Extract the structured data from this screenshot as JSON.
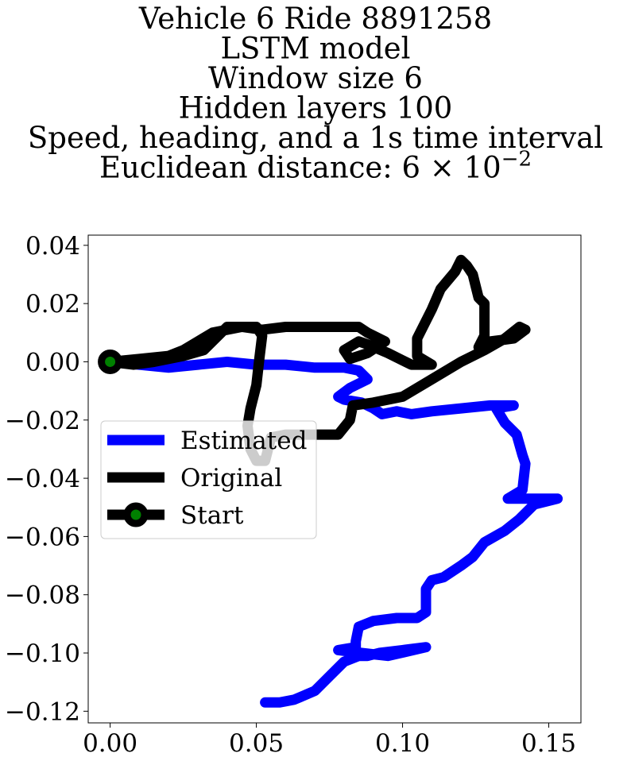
{
  "chart_data": {
    "type": "line",
    "title_lines": [
      "Vehicle 6 Ride 8891258",
      "LSTM model",
      "Window size 6",
      "Hidden layers 100",
      "Speed, heading, and a 1s time interval",
      "Euclidean distance: 6 × 10"
    ],
    "title_exponent": "−2",
    "xlim": [
      -0.0075,
      0.161
    ],
    "ylim": [
      -0.124,
      0.0435
    ],
    "xticks": [
      0.0,
      0.05,
      0.1,
      0.15
    ],
    "xtick_labels": [
      "0.00",
      "0.05",
      "0.10",
      "0.15"
    ],
    "yticks": [
      0.04,
      0.02,
      0.0,
      -0.02,
      -0.04,
      -0.06,
      -0.08,
      -0.1,
      -0.12
    ],
    "ytick_labels": [
      "0.04",
      "0.02",
      "0.00",
      "−0.02",
      "−0.04",
      "−0.06",
      "−0.08",
      "−0.10",
      "−0.12"
    ],
    "grid": false,
    "legend_position": "center-left",
    "series": [
      {
        "name": "Estimated",
        "color": "#0000ff",
        "points": [
          [
            0.0,
            0.0
          ],
          [
            0.01,
            -0.001
          ],
          [
            0.02,
            -0.002
          ],
          [
            0.03,
            -0.001
          ],
          [
            0.04,
            0.0
          ],
          [
            0.05,
            -0.001
          ],
          [
            0.06,
            -0.001
          ],
          [
            0.07,
            -0.002
          ],
          [
            0.08,
            -0.002
          ],
          [
            0.085,
            -0.003
          ],
          [
            0.088,
            -0.006
          ],
          [
            0.082,
            -0.009
          ],
          [
            0.078,
            -0.012
          ],
          [
            0.08,
            -0.013
          ],
          [
            0.086,
            -0.014
          ],
          [
            0.09,
            -0.016
          ],
          [
            0.093,
            -0.018
          ],
          [
            0.098,
            -0.017
          ],
          [
            0.103,
            -0.018
          ],
          [
            0.11,
            -0.017
          ],
          [
            0.12,
            -0.016
          ],
          [
            0.13,
            -0.015
          ],
          [
            0.138,
            -0.015
          ],
          [
            0.132,
            -0.016
          ],
          [
            0.135,
            -0.021
          ],
          [
            0.139,
            -0.025
          ],
          [
            0.141,
            -0.032
          ],
          [
            0.142,
            -0.035
          ],
          [
            0.141,
            -0.044
          ],
          [
            0.136,
            -0.047
          ],
          [
            0.145,
            -0.047
          ],
          [
            0.153,
            -0.047
          ],
          [
            0.145,
            -0.049
          ],
          [
            0.14,
            -0.054
          ],
          [
            0.135,
            -0.058
          ],
          [
            0.128,
            -0.062
          ],
          [
            0.124,
            -0.067
          ],
          [
            0.12,
            -0.07
          ],
          [
            0.114,
            -0.074
          ],
          [
            0.11,
            -0.075
          ],
          [
            0.108,
            -0.078
          ],
          [
            0.108,
            -0.086
          ],
          [
            0.105,
            -0.088
          ],
          [
            0.098,
            -0.088
          ],
          [
            0.09,
            -0.089
          ],
          [
            0.085,
            -0.091
          ],
          [
            0.084,
            -0.096
          ],
          [
            0.084,
            -0.098
          ],
          [
            0.078,
            -0.099
          ],
          [
            0.086,
            -0.1
          ],
          [
            0.095,
            -0.101
          ],
          [
            0.108,
            -0.098
          ],
          [
            0.1,
            -0.099
          ],
          [
            0.092,
            -0.1
          ],
          [
            0.088,
            -0.101
          ],
          [
            0.085,
            -0.101
          ],
          [
            0.08,
            -0.103
          ],
          [
            0.075,
            -0.108
          ],
          [
            0.07,
            -0.113
          ],
          [
            0.063,
            -0.116
          ],
          [
            0.058,
            -0.117
          ],
          [
            0.053,
            -0.117
          ]
        ]
      },
      {
        "name": "Original",
        "color": "#000000",
        "points": [
          [
            0.0,
            0.0
          ],
          [
            0.01,
            0.001
          ],
          [
            0.02,
            0.002
          ],
          [
            0.025,
            0.004
          ],
          [
            0.03,
            0.007
          ],
          [
            0.035,
            0.01
          ],
          [
            0.04,
            0.011
          ],
          [
            0.045,
            0.012
          ],
          [
            0.05,
            0.012
          ],
          [
            0.052,
            0.009
          ],
          [
            0.051,
            0.001
          ],
          [
            0.05,
            -0.008
          ],
          [
            0.048,
            -0.016
          ],
          [
            0.047,
            -0.022
          ],
          [
            0.048,
            -0.03
          ],
          [
            0.05,
            -0.034
          ],
          [
            0.053,
            -0.034
          ],
          [
            0.054,
            -0.03
          ],
          [
            0.055,
            -0.026
          ],
          [
            0.06,
            -0.025
          ],
          [
            0.07,
            -0.025
          ],
          [
            0.078,
            -0.025
          ],
          [
            0.082,
            -0.02
          ],
          [
            0.083,
            -0.015
          ],
          [
            0.09,
            -0.014
          ],
          [
            0.1,
            -0.012
          ],
          [
            0.11,
            -0.006
          ],
          [
            0.12,
            0.0
          ],
          [
            0.128,
            0.004
          ],
          [
            0.135,
            0.008
          ],
          [
            0.14,
            0.012
          ],
          [
            0.142,
            0.011
          ],
          [
            0.138,
            0.008
          ],
          [
            0.13,
            0.007
          ],
          [
            0.126,
            0.005
          ],
          [
            0.128,
            0.009
          ],
          [
            0.128,
            0.02
          ],
          [
            0.126,
            0.022
          ],
          [
            0.124,
            0.03
          ],
          [
            0.122,
            0.033
          ],
          [
            0.12,
            0.035
          ],
          [
            0.118,
            0.031
          ],
          [
            0.113,
            0.025
          ],
          [
            0.11,
            0.018
          ],
          [
            0.105,
            0.008
          ],
          [
            0.105,
            0.002
          ],
          [
            0.11,
            -0.001
          ],
          [
            0.103,
            -0.001
          ],
          [
            0.095,
            0.003
          ],
          [
            0.088,
            0.006
          ],
          [
            0.085,
            0.007
          ],
          [
            0.08,
            0.004
          ],
          [
            0.082,
            0.001
          ],
          [
            0.088,
            0.003
          ],
          [
            0.094,
            0.007
          ],
          [
            0.088,
            0.01
          ],
          [
            0.085,
            0.012
          ],
          [
            0.08,
            0.012
          ],
          [
            0.07,
            0.012
          ],
          [
            0.06,
            0.012
          ],
          [
            0.052,
            0.011
          ],
          [
            0.045,
            0.012
          ],
          [
            0.04,
            0.012
          ],
          [
            0.037,
            0.009
          ],
          [
            0.032,
            0.004
          ],
          [
            0.025,
            0.002
          ],
          [
            0.015,
            0.0
          ],
          [
            0.008,
            -0.001
          ],
          [
            0.0,
            0.0
          ]
        ]
      }
    ],
    "start_marker": {
      "name": "Start",
      "x": 0.0,
      "y": 0.0,
      "edge_color": "#000000",
      "face_color": "#008000"
    }
  }
}
